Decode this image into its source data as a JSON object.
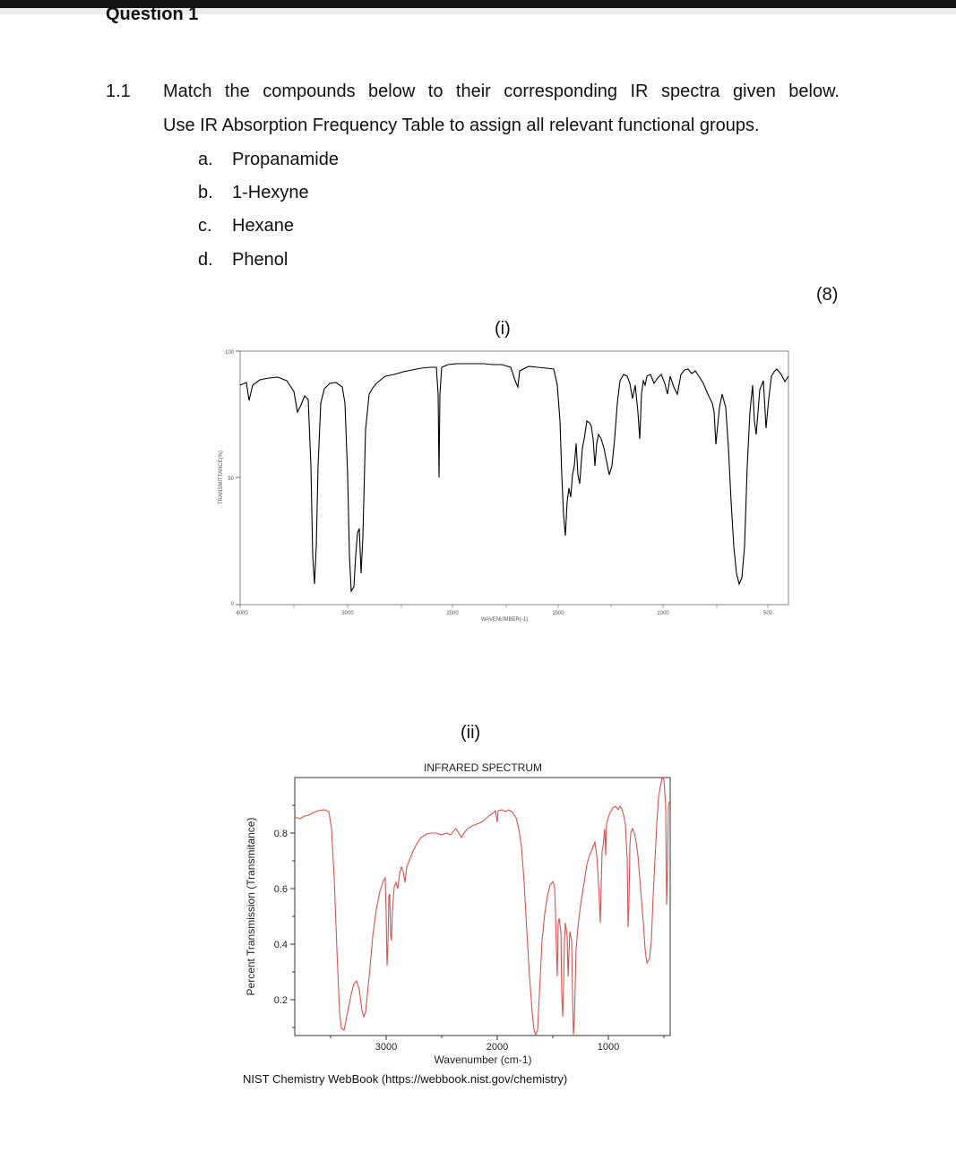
{
  "question_title": "Question 1",
  "item_number": "1.1",
  "instruction_line1": "Match the compounds below to their corresponding IR spectra given below.",
  "instruction_line2": "Use IR Absorption Frequency Table to assign all relevant functional groups.",
  "compounds": [
    {
      "letter": "a.",
      "name": "Propanamide"
    },
    {
      "letter": "b.",
      "name": "1-Hexyne"
    },
    {
      "letter": "c.",
      "name": "Hexane"
    },
    {
      "letter": "d.",
      "name": "Phenol"
    }
  ],
  "marks": "(8)",
  "spectrum_i": {
    "label": "(i)",
    "ylabel": "TRANSMITTANCE(%)",
    "xlabel": "WAVENUMBER(-1)",
    "y_ticks": [
      "100",
      "50",
      "0"
    ],
    "x_ticks": [
      "4000",
      "3000",
      "2000",
      "1500",
      "1000",
      "500"
    ],
    "line_color": "#000000"
  },
  "spectrum_ii": {
    "label": "(ii)",
    "title": "INFRARED SPECTRUM",
    "ylabel": "Percent Transmission (Transmitance)",
    "xlabel": "Wavenumber (cm-1)",
    "y_ticks": [
      "0.8",
      "0.6",
      "0.4",
      "0.2"
    ],
    "x_ticks": [
      "3000",
      "2000",
      "1000"
    ],
    "line_color": "#d9534f",
    "source": "NIST Chemistry WebBook (https://webbook.nist.gov/chemistry)"
  }
}
